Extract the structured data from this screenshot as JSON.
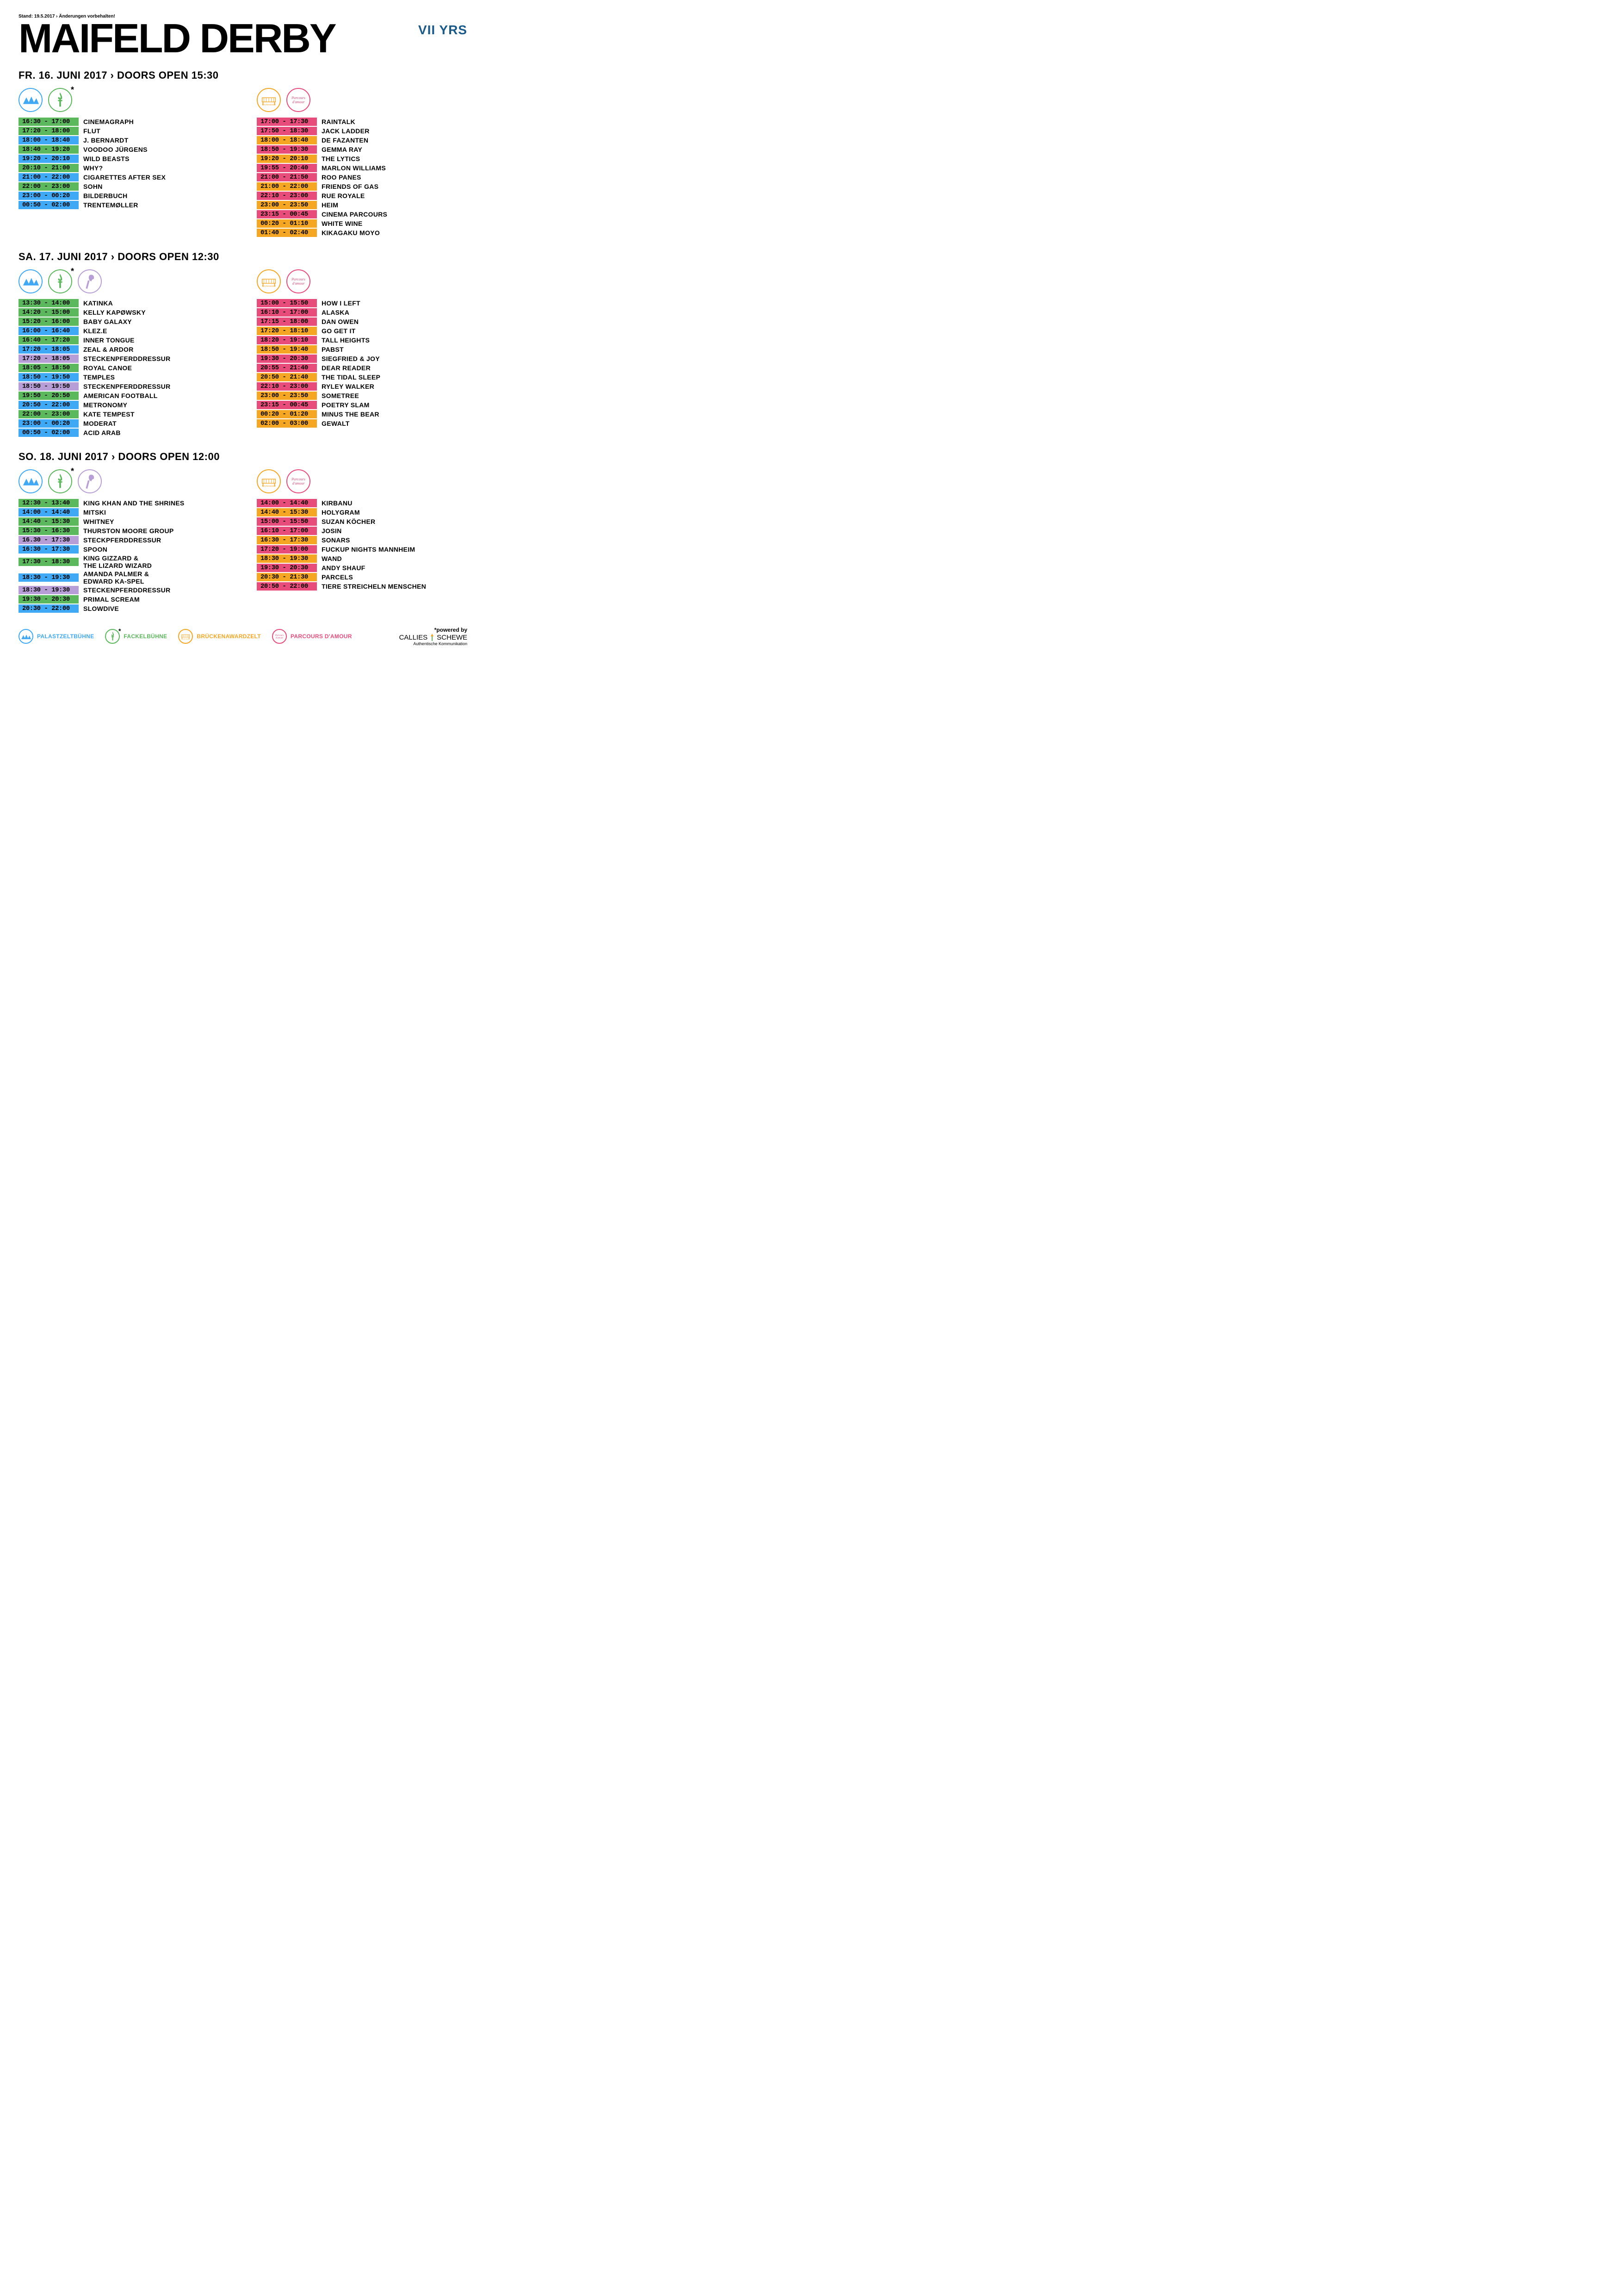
{
  "top_note": "Stand: 19.5.2017 › Änderungen vorbehalten!",
  "title": "MAIFELD DERBY",
  "badge": "VII YRS",
  "colors": {
    "palast": "#3fa9f5",
    "fackel": "#5cb85c",
    "stecken": "#b89ed6",
    "brucken": "#f5a623",
    "parcours": "#e84c7a"
  },
  "days": [
    {
      "header": "FR. 16. JUNI 2017 › DOORS OPEN 15:30",
      "left_icons": [
        "palast",
        "fackel"
      ],
      "right_icons": [
        "brucken",
        "parcours"
      ],
      "left": [
        {
          "time": "16:30 - 17:00",
          "stage": "fackel",
          "act": "CINEMAGRAPH"
        },
        {
          "time": "17:20 - 18:00",
          "stage": "fackel",
          "act": "FLUT"
        },
        {
          "time": "18:00 - 18:40",
          "stage": "palast",
          "act": "J. BERNARDT"
        },
        {
          "time": "18:40 - 19:20",
          "stage": "fackel",
          "act": "VOODOO JÜRGENS"
        },
        {
          "time": "19:20 - 20:10",
          "stage": "palast",
          "act": "WILD BEASTS"
        },
        {
          "time": "20:10 - 21:00",
          "stage": "fackel",
          "act": "WHY?"
        },
        {
          "time": "21:00 - 22:00",
          "stage": "palast",
          "act": "CIGARETTES AFTER SEX"
        },
        {
          "time": "22:00 - 23:00",
          "stage": "fackel",
          "act": "SOHN"
        },
        {
          "time": "23:00 - 00:20",
          "stage": "palast",
          "act": "BILDERBUCH"
        },
        {
          "time": "00:50 - 02:00",
          "stage": "palast",
          "act": "TRENTEMØLLER"
        }
      ],
      "right": [
        {
          "time": "17:00 - 17:30",
          "stage": "parcours",
          "act": "RAINTALK"
        },
        {
          "time": "17:50 - 18:30",
          "stage": "parcours",
          "act": "JACK LADDER"
        },
        {
          "time": "18:00 - 18:40",
          "stage": "brucken",
          "act": "DE FAZANTEN"
        },
        {
          "time": "18:50 - 19:30",
          "stage": "parcours",
          "act": "GEMMA RAY"
        },
        {
          "time": "19:20 - 20:10",
          "stage": "brucken",
          "act": "THE LYTICS"
        },
        {
          "time": "19:55 - 20:40",
          "stage": "parcours",
          "act": "MARLON WILLIAMS"
        },
        {
          "time": "21:00 - 21:50",
          "stage": "parcours",
          "act": "ROO PANES"
        },
        {
          "time": "21:00 - 22:00",
          "stage": "brucken",
          "act": "FRIENDS OF GAS"
        },
        {
          "time": "22:10 - 23:00",
          "stage": "parcours",
          "act": "RUE ROYALE"
        },
        {
          "time": "23:00 - 23:50",
          "stage": "brucken",
          "act": "HEIM"
        },
        {
          "time": "23:15 - 00:45",
          "stage": "parcours",
          "act": "CINEMA PARCOURS"
        },
        {
          "time": "00:20 - 01:10",
          "stage": "brucken",
          "act": "WHITE WINE"
        },
        {
          "time": "01:40 - 02:40",
          "stage": "brucken",
          "act": "KIKAGAKU MOYO"
        }
      ]
    },
    {
      "header": "SA. 17. JUNI 2017 › DOORS OPEN 12:30",
      "left_icons": [
        "palast",
        "fackel",
        "stecken"
      ],
      "right_icons": [
        "brucken",
        "parcours"
      ],
      "left": [
        {
          "time": "13:30 - 14:00",
          "stage": "fackel",
          "act": "KATINKA"
        },
        {
          "time": "14:20 - 15:00",
          "stage": "fackel",
          "act": "KELLY KAPØWSKY"
        },
        {
          "time": "15:20 - 16:00",
          "stage": "fackel",
          "act": "BABY GALAXY"
        },
        {
          "time": "16:00 - 16:40",
          "stage": "palast",
          "act": "KLEZ.E"
        },
        {
          "time": "16:40 - 17:20",
          "stage": "fackel",
          "act": "INNER TONGUE"
        },
        {
          "time": "17:20 - 18:05",
          "stage": "palast",
          "act": "ZEAL & ARDOR"
        },
        {
          "time": "17:20 - 18:05",
          "stage": "stecken",
          "act": "STECKENPFERDDRESSUR"
        },
        {
          "time": "18:05 - 18:50",
          "stage": "fackel",
          "act": "ROYAL CANOE"
        },
        {
          "time": "18:50 - 19:50",
          "stage": "palast",
          "act": "TEMPLES"
        },
        {
          "time": "18:50 - 19:50",
          "stage": "stecken",
          "act": "STECKENPFERDDRESSUR"
        },
        {
          "time": "19:50 - 20:50",
          "stage": "fackel",
          "act": "AMERICAN FOOTBALL"
        },
        {
          "time": "20:50 - 22:00",
          "stage": "palast",
          "act": "METRONOMY"
        },
        {
          "time": "22:00 - 23:00",
          "stage": "fackel",
          "act": "KATE TEMPEST"
        },
        {
          "time": "23:00 - 00:20",
          "stage": "palast",
          "act": "MODERAT"
        },
        {
          "time": "00:50 - 02:00",
          "stage": "palast",
          "act": "ACID ARAB"
        }
      ],
      "right": [
        {
          "time": "15:00 - 15:50",
          "stage": "parcours",
          "act": "HOW I LEFT"
        },
        {
          "time": "16:10 - 17:00",
          "stage": "parcours",
          "act": "ALASKA"
        },
        {
          "time": "17:15 - 18:00",
          "stage": "parcours",
          "act": "DAN OWEN"
        },
        {
          "time": "17:20 - 18:10",
          "stage": "brucken",
          "act": "GO GET IT"
        },
        {
          "time": "18:20 - 19:10",
          "stage": "parcours",
          "act": "TALL HEIGHTS"
        },
        {
          "time": "18:50 - 19:40",
          "stage": "brucken",
          "act": "PABST"
        },
        {
          "time": "19:30 - 20:30",
          "stage": "parcours",
          "act": "SIEGFRIED & JOY"
        },
        {
          "time": "20:55 - 21:40",
          "stage": "parcours",
          "act": "DEAR READER"
        },
        {
          "time": "20:50 - 21:40",
          "stage": "brucken",
          "act": "THE TIDAL SLEEP"
        },
        {
          "time": "22:10 - 23:00",
          "stage": "parcours",
          "act": "RYLEY WALKER"
        },
        {
          "time": "23:00 - 23:50",
          "stage": "brucken",
          "act": "SOMETREE"
        },
        {
          "time": "23:15 - 00:45",
          "stage": "parcours",
          "act": "POETRY SLAM"
        },
        {
          "time": "00:20 - 01:20",
          "stage": "brucken",
          "act": "MINUS THE BEAR"
        },
        {
          "time": "02:00 - 03:00",
          "stage": "brucken",
          "act": "GEWALT"
        }
      ]
    },
    {
      "header": "SO. 18. JUNI 2017 › DOORS OPEN 12:00",
      "left_icons": [
        "palast",
        "fackel",
        "stecken"
      ],
      "right_icons": [
        "brucken",
        "parcours"
      ],
      "left": [
        {
          "time": "12:30 - 13:40",
          "stage": "fackel",
          "act": "KING KHAN AND THE SHRINES"
        },
        {
          "time": "14:00 - 14:40",
          "stage": "palast",
          "act": "MITSKI"
        },
        {
          "time": "14:40 - 15:30",
          "stage": "fackel",
          "act": "WHITNEY"
        },
        {
          "time": "15:30 - 16:30",
          "stage": "fackel",
          "act": "THURSTON MOORE GROUP"
        },
        {
          "time": "16.30 - 17:30",
          "stage": "stecken",
          "act": "STECKPFERDDRESSUR"
        },
        {
          "time": "16:30 - 17:30",
          "stage": "palast",
          "act": "SPOON"
        },
        {
          "time": "17:30 - 18:30",
          "stage": "fackel",
          "act": "KING GIZZARD &\nTHE LIZARD WIZARD"
        },
        {
          "time": "18:30 - 19:30",
          "stage": "palast",
          "act": "AMANDA PALMER &\nEDWARD KA-SPEL"
        },
        {
          "time": "18:30 - 19:30",
          "stage": "stecken",
          "act": "STECKENPFERDDRESSUR"
        },
        {
          "time": "19:30 - 20:30",
          "stage": "fackel",
          "act": "PRIMAL SCREAM"
        },
        {
          "time": "20:30 - 22:00",
          "stage": "palast",
          "act": "SLOWDIVE"
        }
      ],
      "right": [
        {
          "time": "14:00 - 14:40",
          "stage": "parcours",
          "act": "KIRBANU"
        },
        {
          "time": "14:40 - 15:30",
          "stage": "brucken",
          "act": "HOLYGRAM"
        },
        {
          "time": "15:00 - 15:50",
          "stage": "parcours",
          "act": "SUZAN KÖCHER"
        },
        {
          "time": "16:10 - 17:00",
          "stage": "parcours",
          "act": "JOSIN"
        },
        {
          "time": "16:30 - 17:30",
          "stage": "brucken",
          "act": "SONARS"
        },
        {
          "time": "17:20 - 19:00",
          "stage": "parcours",
          "act": "FUCKUP NIGHTS MANNHEIM"
        },
        {
          "time": "18:30 - 19:30",
          "stage": "brucken",
          "act": "WAND"
        },
        {
          "time": "19:30 - 20:30",
          "stage": "parcours",
          "act": "ANDY SHAUF"
        },
        {
          "time": "20:30 - 21:30",
          "stage": "brucken",
          "act": "PARCELS"
        },
        {
          "time": "20:50 - 22:00",
          "stage": "parcours",
          "act": "TIERE STREICHELN MENSCHEN"
        }
      ]
    }
  ],
  "legend": [
    {
      "stage": "palast",
      "label": "PALASTZELTBÜHNE"
    },
    {
      "stage": "fackel",
      "label": "FACKELBÜHNE",
      "asterisk": true
    },
    {
      "stage": "brucken",
      "label": "BRÜCKENAWARDZELT"
    },
    {
      "stage": "parcours",
      "label": "PARCOURS D'AMOUR"
    }
  ],
  "powered": {
    "top": "*powered by",
    "brand_c": "CALLIES",
    "brand_s": "SCHEWE",
    "sub": "Authentische Kommunikation"
  }
}
